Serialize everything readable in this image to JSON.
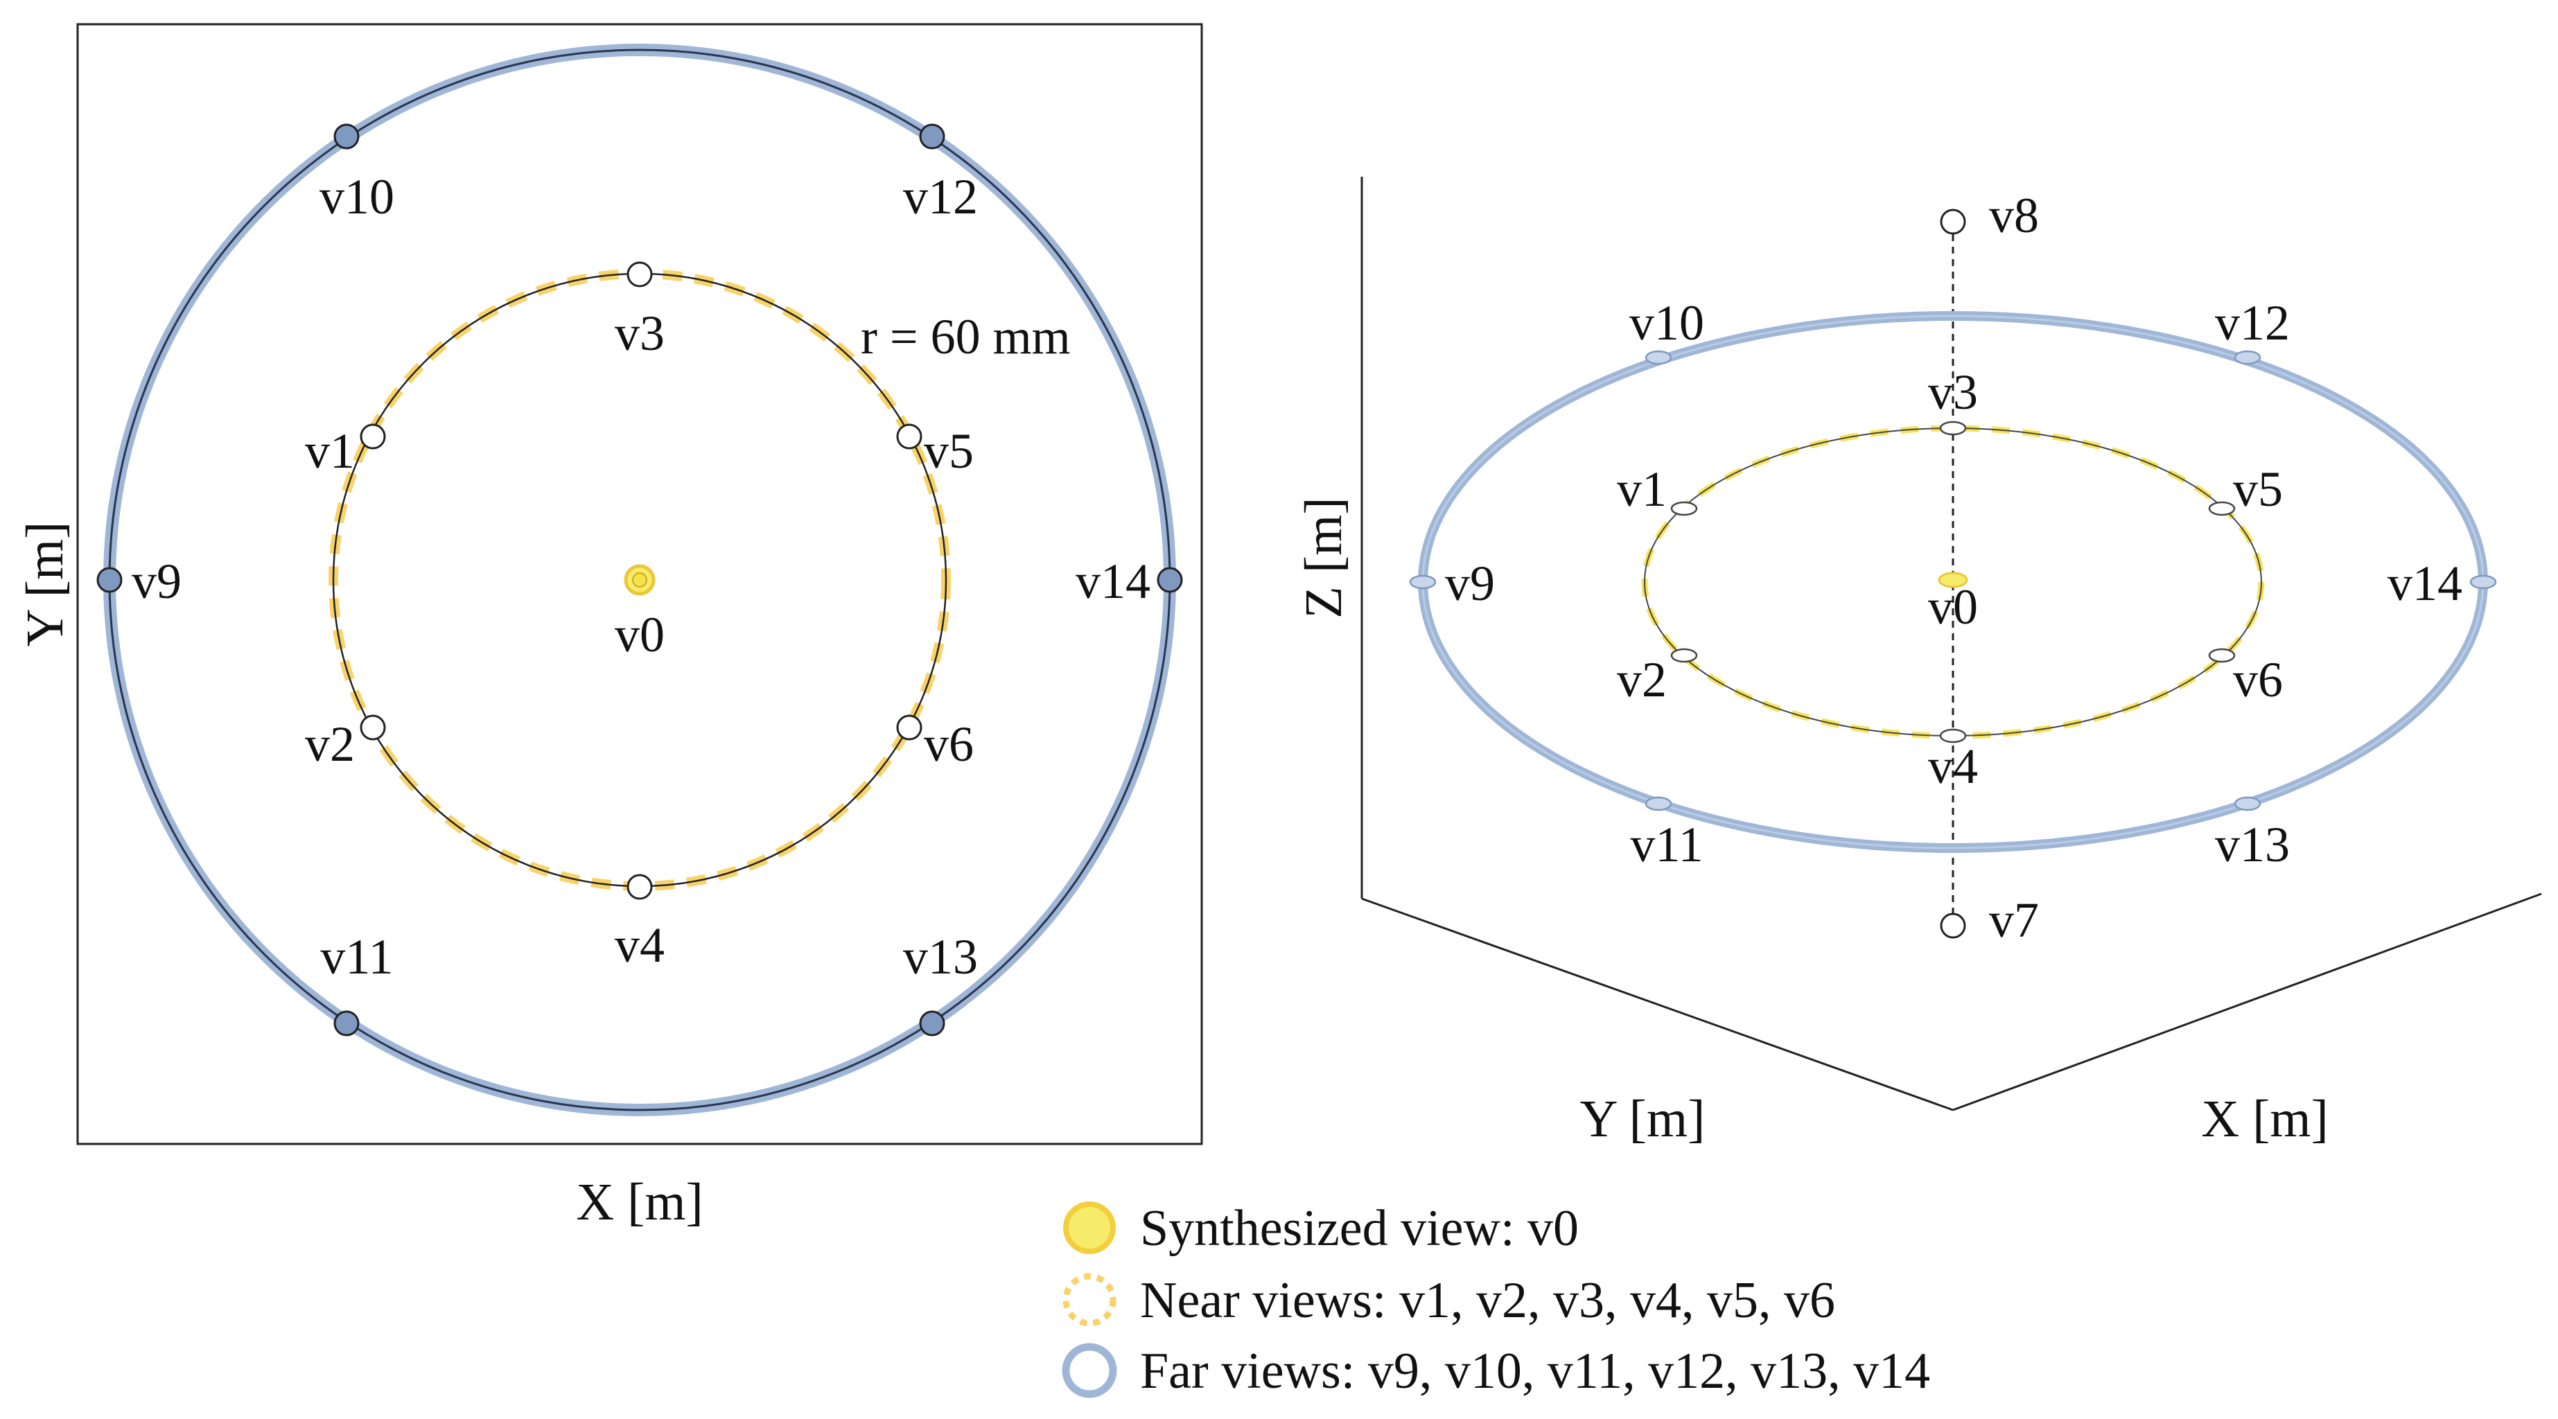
{
  "top_view": {
    "x_axis_label": "X [m]",
    "y_axis_label": "Y [m]",
    "radius_label": "r = 60 mm",
    "center_label": "v0",
    "near_labels": [
      "v1",
      "v2",
      "v3",
      "v4",
      "v5",
      "v6"
    ],
    "far_labels": [
      "v9",
      "v10",
      "v11",
      "v12",
      "v13",
      "v14"
    ]
  },
  "perspective_view": {
    "x_axis_label": "X [m]",
    "y_axis_label": "Y [m]",
    "z_axis_label": "Z [m]",
    "center_label": "v0",
    "near_labels": [
      "v1",
      "v2",
      "v3",
      "v4",
      "v5",
      "v6"
    ],
    "far_labels": [
      "v9",
      "v10",
      "v11",
      "v12",
      "v13",
      "v14"
    ],
    "vertical_labels": [
      "v7",
      "v8"
    ]
  },
  "legend": {
    "synthesized": "Synthesized view: v0",
    "near": "Near views: v1, v2, v3, v4, v5, v6",
    "far": "Far views: v9, v10, v11, v12, v13, v14"
  },
  "colors": {
    "synthesized": "#f7ec6a",
    "near_ring": "#f9d36a",
    "far_ring": "#9fb6d6",
    "far_ring_dark": "#7f99c0",
    "line": "#222222"
  }
}
